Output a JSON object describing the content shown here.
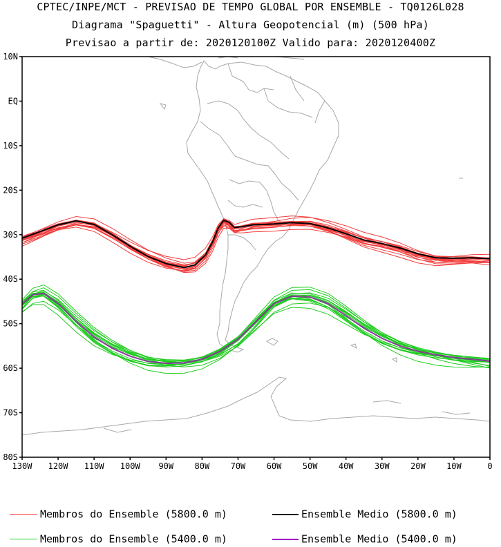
{
  "header": {
    "line1": "CPTEC/INPE/MCT - PREVISAO DE TEMPO GLOBAL POR ENSEMBLE - TQ0126L028",
    "line2": "Diagrama \"Spaguetti\" - Altura Geopotencial (m) (500 hPa)",
    "line3": "Previsao a partir de: 2020120100Z  Valido para: 2020120400Z"
  },
  "map": {
    "lat_labels": [
      "10N",
      "EQ",
      "10S",
      "20S",
      "30S",
      "40S",
      "50S",
      "60S",
      "70S",
      "80S"
    ],
    "lat_values": [
      10,
      0,
      -10,
      -20,
      -30,
      -40,
      -50,
      -60,
      -70,
      -80
    ],
    "lon_labels": [
      "130W",
      "120W",
      "110W",
      "100W",
      "90W",
      "80W",
      "70W",
      "60W",
      "50W",
      "40W",
      "30W",
      "20W",
      "10W",
      "0"
    ],
    "lon_values": [
      -130,
      -120,
      -110,
      -100,
      -90,
      -80,
      -70,
      -60,
      -50,
      -40,
      -30,
      -20,
      -10,
      0
    ],
    "lat_range": [
      -80,
      10
    ],
    "lon_range": [
      -130,
      0
    ],
    "contours": {
      "mean_5800": [
        [
          -130,
          -30.8
        ],
        [
          -125,
          -29.3
        ],
        [
          -120,
          -27.8
        ],
        [
          -115,
          -26.9
        ],
        [
          -110,
          -27.7
        ],
        [
          -105,
          -30
        ],
        [
          -100,
          -32.6
        ],
        [
          -95,
          -34.9
        ],
        [
          -90,
          -36.5
        ],
        [
          -85,
          -37.4
        ],
        [
          -82,
          -36.8
        ],
        [
          -79,
          -34.5
        ],
        [
          -77,
          -31.5
        ],
        [
          -75.5,
          -28.5
        ],
        [
          -74,
          -26.8
        ],
        [
          -72.5,
          -27.2
        ],
        [
          -71,
          -28.4
        ],
        [
          -69,
          -28.2
        ],
        [
          -66,
          -27.8
        ],
        [
          -60,
          -27.6
        ],
        [
          -55,
          -27.3
        ],
        [
          -50,
          -27.5
        ],
        [
          -45,
          -28.5
        ],
        [
          -40,
          -29.8
        ],
        [
          -35,
          -31.2
        ],
        [
          -30,
          -32
        ],
        [
          -25,
          -33
        ],
        [
          -20,
          -34.3
        ],
        [
          -15,
          -35.2
        ],
        [
          -10,
          -35.3
        ],
        [
          -5,
          -35.2
        ],
        [
          0,
          -35.4
        ]
      ],
      "mean_5400": [
        [
          -130,
          -45.6
        ],
        [
          -127,
          -43.5
        ],
        [
          -124,
          -43.2
        ],
        [
          -120,
          -45.5
        ],
        [
          -115,
          -49.5
        ],
        [
          -110,
          -53
        ],
        [
          -105,
          -55.5
        ],
        [
          -100,
          -57.3
        ],
        [
          -95,
          -58.5
        ],
        [
          -90,
          -58.9
        ],
        [
          -85,
          -58.8
        ],
        [
          -80,
          -58
        ],
        [
          -75,
          -56.2
        ],
        [
          -70,
          -53.5
        ],
        [
          -65,
          -49.5
        ],
        [
          -60,
          -45.5
        ],
        [
          -55,
          -43.8
        ],
        [
          -50,
          -44
        ],
        [
          -45,
          -45.5
        ],
        [
          -40,
          -48.2
        ],
        [
          -35,
          -51
        ],
        [
          -30,
          -53.3
        ],
        [
          -25,
          -55
        ],
        [
          -20,
          -56.2
        ],
        [
          -15,
          -57
        ],
        [
          -10,
          -57.6
        ],
        [
          -5,
          -58
        ],
        [
          0,
          -58.4
        ]
      ]
    }
  },
  "legend": [
    {
      "label": "Membros do Ensemble (5800.0 m)",
      "color": "#f23c3c"
    },
    {
      "label": "Ensemble Medio (5800.0 m)",
      "color": "#000000"
    },
    {
      "label": "Membros do Ensemble (5400.0 m)",
      "color": "#1ecc1e"
    },
    {
      "label": "Ensemble Medio (5400.0 m)",
      "color": "#a000c8"
    }
  ]
}
